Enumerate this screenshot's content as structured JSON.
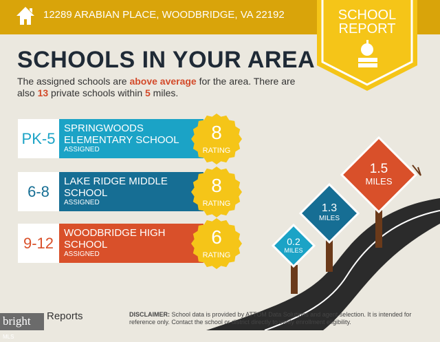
{
  "header": {
    "address": "12289 ARABIAN PLACE, WOODBRIDGE, VA 22192",
    "badge_line1": "SCHOOL",
    "badge_line2": "REPORT"
  },
  "title": "SCHOOLS IN YOUR AREA",
  "intro": {
    "p1": "The assigned schools are ",
    "highlight": "above average",
    "p2": " for the area. There are also ",
    "count": "13",
    "p3": " private schools within ",
    "miles": "5",
    "p4": " miles."
  },
  "schools": [
    {
      "grade": "PK-5",
      "name": "SPRINGWOODS ELEMENTARY SCHOOL",
      "status": "ASSIGNED",
      "rating": "8",
      "rating_label": "RATING",
      "color": "#1ba3c6"
    },
    {
      "grade": "6-8",
      "name": "LAKE RIDGE MIDDLE SCHOOL",
      "status": "ASSIGNED",
      "rating": "8",
      "rating_label": "RATING",
      "color": "#166e94"
    },
    {
      "grade": "9-12",
      "name": "WOODBRIDGE HIGH SCHOOL",
      "status": "ASSIGNED",
      "rating": "6",
      "rating_label": "RATING",
      "color": "#d9502a"
    }
  ],
  "signs": [
    {
      "value": "0.2",
      "unit": "MILES",
      "color": "#1ba3c6"
    },
    {
      "value": "1.3",
      "unit": "MILES",
      "color": "#166e94"
    },
    {
      "value": "1.5",
      "unit": "MILES",
      "color": "#d9502a"
    }
  ],
  "footer": {
    "logo": "bright",
    "logo_sub": "MLS",
    "reports": "Reports",
    "disclaimer_label": "DISCLAIMER:",
    "disclaimer": " School data is provided by ATTOM Data Solutions and agent selection. It is intended for reference only. Contact the school or district directly to verify enrollment eligibility."
  },
  "colors": {
    "header": "#d9a40a",
    "badge": "#f5c518",
    "accent": "#d34a2a",
    "title": "#1f2a36"
  }
}
